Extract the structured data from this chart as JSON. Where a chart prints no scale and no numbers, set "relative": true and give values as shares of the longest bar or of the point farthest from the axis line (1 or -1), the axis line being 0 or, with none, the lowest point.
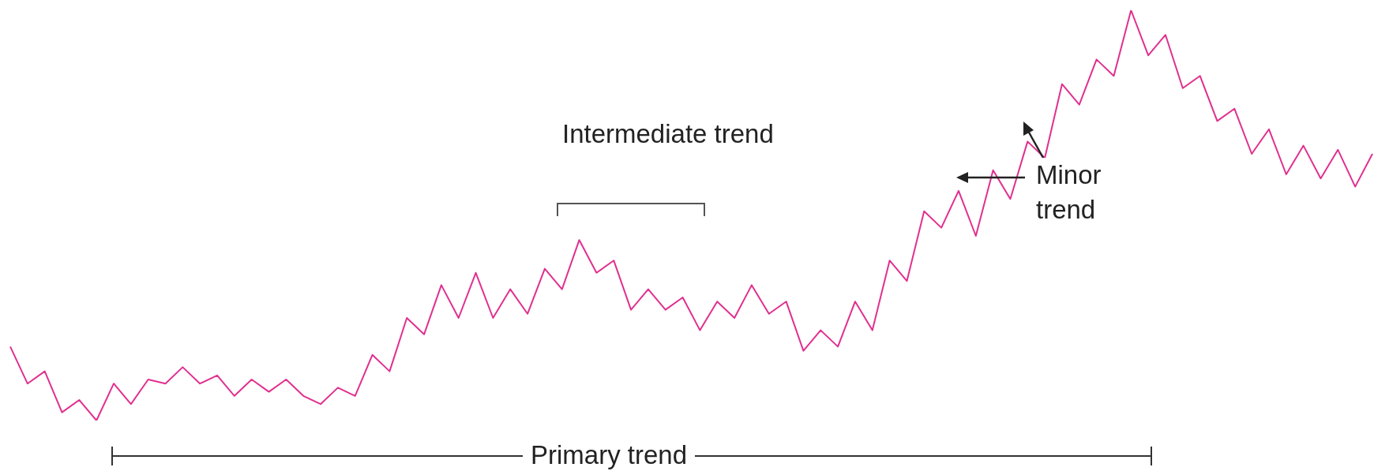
{
  "chart_data": {
    "type": "line",
    "relative": true,
    "color": "#e0308f",
    "categories": [
      null,
      null,
      null,
      null,
      null,
      null,
      null,
      null,
      null,
      null,
      null,
      null,
      null,
      null,
      null,
      null,
      null,
      null,
      null,
      null,
      null,
      null,
      null,
      null,
      null,
      null,
      null,
      null,
      null,
      null,
      null,
      null,
      null,
      null,
      null,
      null,
      null,
      null,
      null,
      null,
      null,
      null,
      null,
      null,
      null,
      null,
      null,
      null,
      null,
      null,
      null,
      null,
      null,
      null,
      null,
      null,
      null,
      null,
      null,
      null,
      null,
      null,
      null,
      null,
      null,
      null,
      null,
      null,
      null,
      null,
      null,
      null,
      null,
      null,
      null,
      null,
      null,
      null,
      null,
      null
    ],
    "values": [
      0.18,
      0.09,
      0.12,
      0.02,
      0.05,
      0,
      0.09,
      0.04,
      0.1,
      0.09,
      0.13,
      0.09,
      0.11,
      0.06,
      0.1,
      0.07,
      0.1,
      0.06,
      0.04,
      0.08,
      0.06,
      0.16,
      0.12,
      0.25,
      0.21,
      0.33,
      0.25,
      0.36,
      0.25,
      0.32,
      0.26,
      0.37,
      0.32,
      0.44,
      0.36,
      0.39,
      0.27,
      0.32,
      0.27,
      0.3,
      0.22,
      0.29,
      0.25,
      0.33,
      0.26,
      0.29,
      0.17,
      0.22,
      0.18,
      0.29,
      0.22,
      0.39,
      0.34,
      0.51,
      0.47,
      0.56,
      0.45,
      0.61,
      0.54,
      0.68,
      0.64,
      0.82,
      0.77,
      0.88,
      0.84,
      1,
      0.89,
      0.94,
      0.81,
      0.84,
      0.73,
      0.76,
      0.65,
      0.71,
      0.6,
      0.67,
      0.59,
      0.66,
      0.57,
      0.65
    ],
    "annotations": [
      "Intermediate trend",
      "Minor trend",
      "Primary trend"
    ]
  }
}
